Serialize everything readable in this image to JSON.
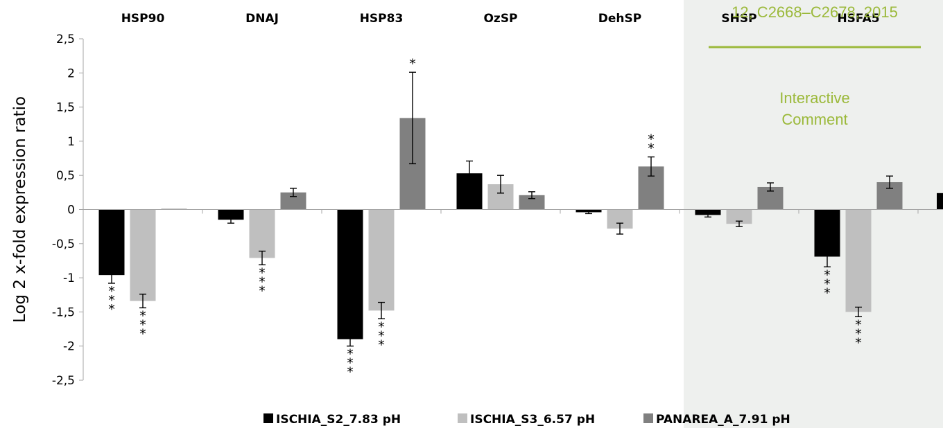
{
  "overlay": {
    "header_text": "12, C2668–C2678, 2015",
    "comment_line1": "Interactive",
    "comment_line2": "Comment",
    "panel_color": "#eef0ee",
    "accent_color": "#9bb93a"
  },
  "chart_data": {
    "type": "bar",
    "title": "",
    "xlabel": "",
    "ylabel": "Log 2 x-fold expression ratio",
    "ylim": [
      -2.5,
      2.5
    ],
    "yticks": [
      "2,5",
      "2",
      "1,5",
      "1",
      "0,5",
      "0",
      "-0,5",
      "-1",
      "-1,5",
      "-2",
      "-2,5"
    ],
    "categories": [
      "HSP90",
      "DNAJ",
      "HSP83",
      "OzSP",
      "DehSP",
      "SHSP",
      "HSFA5"
    ],
    "legend_position": "bottom",
    "grid": false,
    "series": [
      {
        "name": "ISCHIA_S2_7.83 pH",
        "color": "#000000",
        "values": [
          -0.96,
          -0.15,
          -1.9,
          0.53,
          -0.04,
          -0.08,
          -0.69
        ],
        "errors": [
          0.12,
          0.05,
          0.1,
          0.18,
          0.02,
          0.03,
          0.15
        ],
        "significance": [
          "***",
          "",
          "***",
          "",
          "",
          "",
          "***"
        ]
      },
      {
        "name": "ISCHIA_S3_6.57 pH",
        "color": "#bfbfbf",
        "values": [
          -1.34,
          -0.71,
          -1.48,
          0.37,
          -0.28,
          -0.21,
          -1.5
        ],
        "errors": [
          0.1,
          0.1,
          0.12,
          0.13,
          0.08,
          0.04,
          0.07
        ],
        "significance": [
          "***",
          "***",
          "***",
          "",
          "",
          "",
          "***"
        ]
      },
      {
        "name": "PANAREA_A_7.91 pH",
        "color": "#808080",
        "values": [
          0.01,
          0.25,
          1.34,
          0.21,
          0.63,
          0.33,
          0.4
        ],
        "errors": [
          0.0,
          0.06,
          0.67,
          0.05,
          0.14,
          0.06,
          0.09
        ],
        "significance": [
          "",
          "",
          "*",
          "",
          "**",
          "",
          ""
        ]
      }
    ]
  }
}
